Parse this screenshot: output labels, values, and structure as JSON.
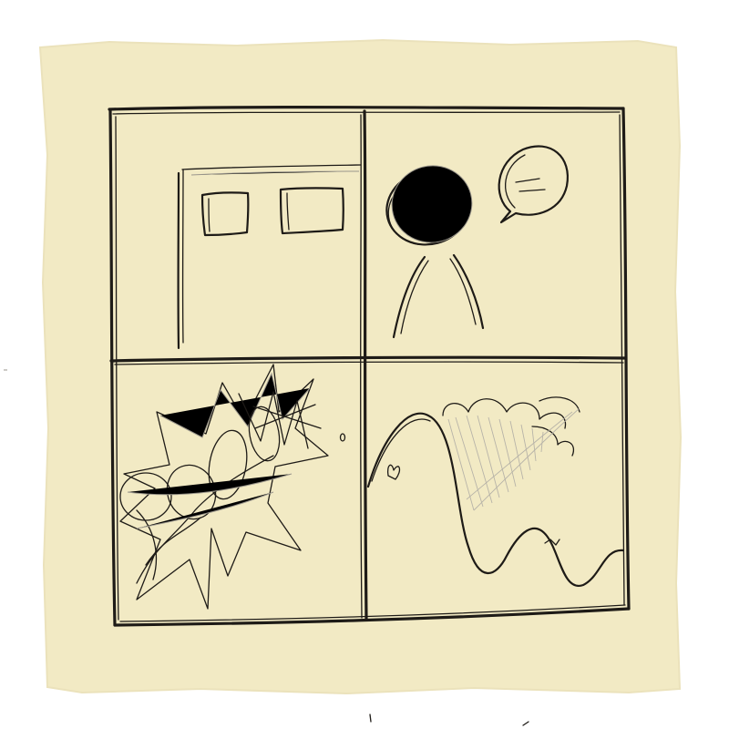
{
  "paper_color": "#f2eac4",
  "background_color": "#ffffff",
  "ink_color": "#1e1b17",
  "panels": [
    {
      "id": "window-building",
      "description_icon": "building-with-windows-icon"
    },
    {
      "id": "figure-speech",
      "description_icon": "person-with-speech-bubble-icon"
    },
    {
      "id": "explosion",
      "description_icon": "explosion-burst-icon"
    },
    {
      "id": "landscape",
      "description_icon": "wavy-landscape-icon"
    }
  ]
}
